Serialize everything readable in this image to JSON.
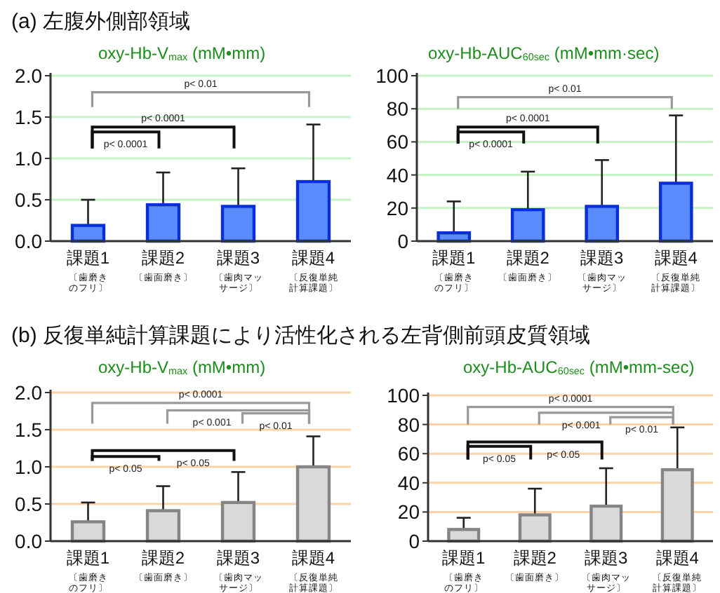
{
  "chart_data": [
    {
      "type": "bar",
      "title": "(a)  左腹外側部領域",
      "subtitle": "oxy-Hb-V$_{max}$ (mM•mm)",
      "categories": [
        "課題1\n〔歯磨きのフリ〕",
        "課題2\n〔歯面磨き〕",
        "課題3\n〔歯肉マッサージ〕",
        "課題4\n〔反復単純計算課題〕"
      ],
      "series": [
        {
          "color": "#5b8cff",
          "values": [
            0.19,
            0.44,
            0.42,
            0.72
          ],
          "errors": [
            [
              0.19,
              0.5
            ],
            [
              0.44,
              0.83
            ],
            [
              0.42,
              0.88
            ],
            [
              0.72,
              1.41
            ]
          ]
        }
      ],
      "ylim": [
        0,
        2
      ],
      "yticks": [
        {
          "value": 0,
          "label": "0.0"
        },
        {
          "value": 0.5,
          "label": "0.5"
        },
        {
          "value": 1,
          "label": "1.0"
        },
        {
          "value": 1.5,
          "label": "1.5"
        },
        {
          "value": 2,
          "label": "2.0"
        }
      ],
      "grid": "y",
      "annotations": [
        "p< 0.01",
        "p< 0.0001",
        "p< 0.0001"
      ]
    },
    {
      "type": "bar",
      "subtitle": "oxy-Hb-AUC$_{60sec}$ (mM•mm·sec)",
      "categories": [
        "課題1\n〔歯磨きのフリ〕",
        "課題2\n〔歯面磨き〕",
        "課題3\n〔歯肉マッサージ〕",
        "課題4\n〔反復単純計算課題〕"
      ],
      "series": [
        {
          "color": "#5b8cff",
          "values": [
            5,
            19,
            21,
            35
          ],
          "errors": [
            [
              5,
              24
            ],
            [
              19,
              42
            ],
            [
              21,
              49
            ],
            [
              35,
              76
            ]
          ]
        }
      ],
      "ylim": [
        0,
        100
      ],
      "yticks": [
        0,
        20,
        40,
        60,
        80,
        100
      ],
      "grid": "y",
      "annotations": [
        "p< 0.01",
        "p< 0.0001",
        "p< 0.0001"
      ]
    },
    {
      "type": "bar",
      "title": "(b)  反復単純計算課題により活性化される左背側前頭皮質領域",
      "subtitle": "oxy-Hb-V$_{max}$ (mM•mm)",
      "categories": [
        "課題1\n〔歯磨きのフリ〕",
        "課題2\n〔歯面磨き〕",
        "課題3\n〔歯肉マッサージ〕",
        "課題4\n〔反復単純計算課題〕"
      ],
      "series": [
        {
          "color": "#d9d9d9",
          "values": [
            0.26,
            0.41,
            0.52,
            1.0
          ],
          "errors": [
            [
              0.26,
              0.52
            ],
            [
              0.41,
              0.74
            ],
            [
              0.52,
              0.93
            ],
            [
              1.0,
              1.41
            ]
          ]
        }
      ],
      "ylim": [
        0,
        2
      ],
      "yticks": [
        {
          "value": 0,
          "label": "0.0"
        },
        {
          "value": 0.5,
          "label": "0.5"
        },
        {
          "value": 1,
          "label": "1.0"
        },
        {
          "value": 1.5,
          "label": "1.5"
        },
        {
          "value": 2,
          "label": "2.0"
        }
      ],
      "grid": "y",
      "annotations": [
        "p< 0.0001",
        "p< 0.001",
        "p< 0.01",
        "p< 0.05",
        "p< 0.05"
      ]
    },
    {
      "type": "bar",
      "subtitle": "oxy-Hb-AUC$_{60sec}$ (mM•mm-sec)",
      "categories": [
        "課題1\n〔歯磨きのフリ〕",
        "課題2\n〔歯面磨き〕",
        "課題3\n〔歯肉マッサージ〕",
        "課題4\n〔反復単純計算課題〕"
      ],
      "series": [
        {
          "color": "#d9d9d9",
          "values": [
            8,
            18,
            24,
            49
          ],
          "errors": [
            [
              8,
              16
            ],
            [
              18,
              36
            ],
            [
              24,
              50
            ],
            [
              49,
              78
            ]
          ]
        }
      ],
      "ylim": [
        0,
        100
      ],
      "yticks": [
        0,
        20,
        40,
        60,
        80,
        100
      ],
      "grid": "y",
      "annotations": [
        "p< 0.0001",
        "p< 0.001",
        "p< 0.01",
        "p< 0.05",
        "p< 0.05"
      ]
    }
  ]
}
